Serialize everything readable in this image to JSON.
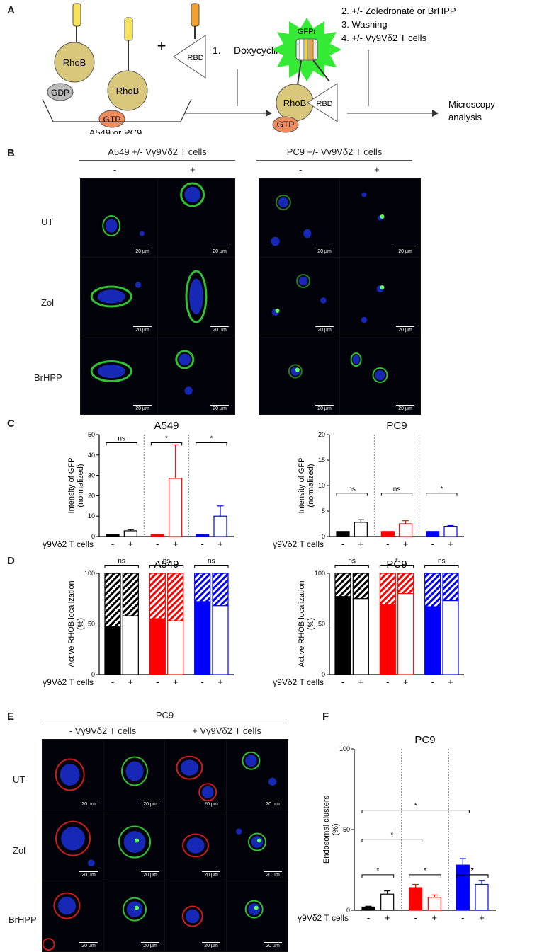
{
  "panels": {
    "a": "A",
    "b": "B",
    "c": "C",
    "d": "D",
    "e": "E",
    "f": "F"
  },
  "schematic": {
    "gdp": "GDP",
    "gtp": "GTP",
    "rhob": "RhoB",
    "rbd": "RBD",
    "plus": "+",
    "cells": "A549 or PC9",
    "step1": "1.",
    "step1_text": "Doxycycline",
    "gfpr": "GFPr",
    "steps": [
      "2.  +/- Zoledronate or BrHPP",
      "3.  Washing",
      "4.  +/- Vγ9Vδ2 T cells"
    ],
    "analysis_line1": "Microscopy",
    "analysis_line2": "analysis"
  },
  "microscopy_b": {
    "group_left": "A549 +/- Vγ9Vδ2 T cells",
    "group_right": "PC9 +/- Vγ9Vδ2 T cells",
    "minus": "-",
    "plus": "+",
    "rows": [
      "UT",
      "Zol",
      "BrHPP"
    ],
    "scale": "20 µm"
  },
  "microscopy_e": {
    "title": "PC9",
    "group_left": "- Vγ9Vδ2 T cells",
    "group_right": "+ Vγ9Vδ2 T cells",
    "rows": [
      "UT",
      "Zol",
      "BrHPP"
    ],
    "scale": "20 µm"
  },
  "x_tick_label": "Vγ9Vδ2 T cells",
  "chart_data": [
    {
      "id": "C-A549",
      "type": "bar",
      "title": "A549",
      "ylabel": "Intensity of GFP (normalized)",
      "ylim": [
        0,
        50
      ],
      "yticks": [
        0,
        10,
        20,
        30,
        40,
        50
      ],
      "categories": [
        "-",
        "+",
        "-",
        "+",
        "-",
        "+"
      ],
      "values": [
        1,
        2.8,
        1,
        28.5,
        1,
        10
      ],
      "errors": [
        0,
        0.6,
        0,
        16.5,
        0,
        5
      ],
      "colors": [
        "#000000",
        "#000000",
        "#ff0000",
        "#ff0000",
        "#0000ff",
        "#0000ff"
      ],
      "filled": [
        true,
        false,
        true,
        false,
        true,
        false
      ],
      "significance": [
        "ns",
        "*",
        "*"
      ]
    },
    {
      "id": "C-PC9",
      "type": "bar",
      "title": "PC9",
      "ylabel": "Intensity of GFP (normalized)",
      "ylim": [
        0,
        20
      ],
      "yticks": [
        0,
        5,
        10,
        15,
        20
      ],
      "categories": [
        "-",
        "+",
        "-",
        "+",
        "-",
        "+"
      ],
      "values": [
        1,
        2.8,
        1,
        2.5,
        1,
        2
      ],
      "errors": [
        0,
        0.5,
        0,
        0.6,
        0,
        0.15
      ],
      "colors": [
        "#000000",
        "#000000",
        "#ff0000",
        "#ff0000",
        "#0000ff",
        "#0000ff"
      ],
      "filled": [
        true,
        false,
        true,
        false,
        true,
        false
      ],
      "significance": [
        "ns",
        "ns",
        "*"
      ]
    },
    {
      "id": "D-A549",
      "type": "bar",
      "title": "A549",
      "ylabel": "Active RHOB localization (%)",
      "ylim": [
        0,
        100
      ],
      "yticks": [
        0,
        50,
        100
      ],
      "categories": [
        "-",
        "+",
        "-",
        "+",
        "-",
        "+"
      ],
      "values": [
        47,
        58,
        55,
        53,
        72,
        68
      ],
      "colors": [
        "#000000",
        "#000000",
        "#ff0000",
        "#ff0000",
        "#0000ff",
        "#0000ff"
      ],
      "filled": [
        true,
        false,
        true,
        false,
        true,
        false
      ],
      "significance": [
        "ns",
        "ns",
        "ns"
      ]
    },
    {
      "id": "D-PC9",
      "type": "bar",
      "title": "PC9",
      "ylabel": "Active RHOB localization (%)",
      "ylim": [
        0,
        100
      ],
      "yticks": [
        0,
        50,
        100
      ],
      "categories": [
        "-",
        "+",
        "-",
        "+",
        "-",
        "+"
      ],
      "values": [
        77,
        75,
        69,
        80,
        67,
        73
      ],
      "colors": [
        "#000000",
        "#000000",
        "#ff0000",
        "#ff0000",
        "#0000ff",
        "#0000ff"
      ],
      "filled": [
        true,
        false,
        true,
        false,
        true,
        false
      ],
      "significance": [
        "ns",
        "*",
        "ns"
      ]
    },
    {
      "id": "F-PC9",
      "type": "bar",
      "title": "PC9",
      "ylabel": "Endosomal clusters (%)",
      "ylim": [
        0,
        100
      ],
      "yticks": [
        0,
        50,
        100
      ],
      "categories": [
        "-",
        "+",
        "-",
        "+",
        "-",
        "+"
      ],
      "values": [
        2,
        10,
        14,
        8,
        28,
        16
      ],
      "errors": [
        0.5,
        2,
        2,
        1.5,
        4,
        2.5
      ],
      "colors": [
        "#000000",
        "#000000",
        "#ff0000",
        "#ff0000",
        "#0000ff",
        "#0000ff"
      ],
      "filled": [
        true,
        false,
        true,
        false,
        true,
        false
      ],
      "significance": [
        "*",
        "*",
        "*",
        "*",
        "*",
        "*"
      ]
    }
  ]
}
